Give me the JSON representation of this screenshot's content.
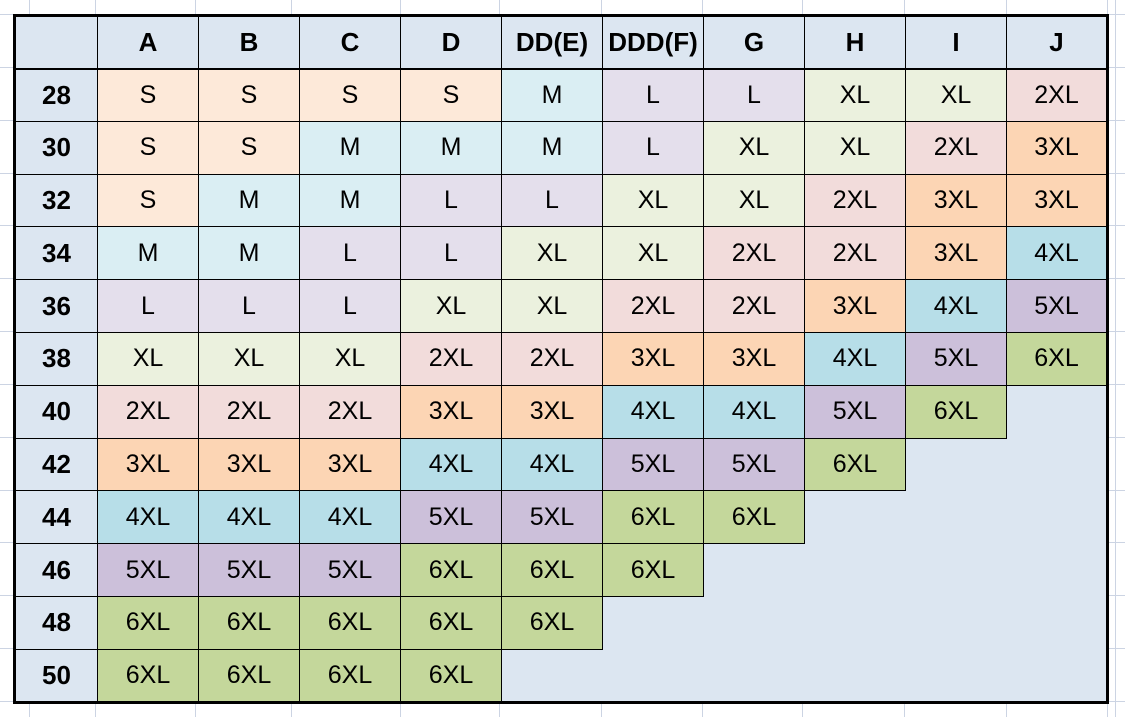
{
  "sheet": {
    "background": "#ffffff",
    "gridline_color": "#ccd4e3"
  },
  "table": {
    "corner_label": "",
    "header_bg": "#dce6f1",
    "band_bg": "#dce6f1",
    "empty_bg": "#dce6f1",
    "border_color": "#000000",
    "text_color": "#000000",
    "columns": [
      "A",
      "B",
      "C",
      "D",
      "DD(E)",
      "DDD(F)",
      "G",
      "H",
      "I",
      "J"
    ],
    "rows": [
      {
        "band": "28",
        "cells": [
          "S",
          "S",
          "S",
          "S",
          "M",
          "L",
          "L",
          "XL",
          "XL",
          "2XL"
        ]
      },
      {
        "band": "30",
        "cells": [
          "S",
          "S",
          "M",
          "M",
          "M",
          "L",
          "XL",
          "XL",
          "2XL",
          "3XL"
        ]
      },
      {
        "band": "32",
        "cells": [
          "S",
          "M",
          "M",
          "L",
          "L",
          "XL",
          "XL",
          "2XL",
          "3XL",
          "3XL"
        ]
      },
      {
        "band": "34",
        "cells": [
          "M",
          "M",
          "L",
          "L",
          "XL",
          "XL",
          "2XL",
          "2XL",
          "3XL",
          "4XL"
        ]
      },
      {
        "band": "36",
        "cells": [
          "L",
          "L",
          "L",
          "XL",
          "XL",
          "2XL",
          "2XL",
          "3XL",
          "4XL",
          "5XL"
        ]
      },
      {
        "band": "38",
        "cells": [
          "XL",
          "XL",
          "XL",
          "2XL",
          "2XL",
          "3XL",
          "3XL",
          "4XL",
          "5XL",
          "6XL"
        ]
      },
      {
        "band": "40",
        "cells": [
          "2XL",
          "2XL",
          "2XL",
          "3XL",
          "3XL",
          "4XL",
          "4XL",
          "5XL",
          "6XL",
          ""
        ]
      },
      {
        "band": "42",
        "cells": [
          "3XL",
          "3XL",
          "3XL",
          "4XL",
          "4XL",
          "5XL",
          "5XL",
          "6XL",
          "",
          ""
        ]
      },
      {
        "band": "44",
        "cells": [
          "4XL",
          "4XL",
          "4XL",
          "5XL",
          "5XL",
          "6XL",
          "6XL",
          "",
          "",
          ""
        ]
      },
      {
        "band": "46",
        "cells": [
          "5XL",
          "5XL",
          "5XL",
          "6XL",
          "6XL",
          "6XL",
          "",
          "",
          "",
          ""
        ]
      },
      {
        "band": "48",
        "cells": [
          "6XL",
          "6XL",
          "6XL",
          "6XL",
          "6XL",
          "",
          "",
          "",
          "",
          ""
        ]
      },
      {
        "band": "50",
        "cells": [
          "6XL",
          "6XL",
          "6XL",
          "6XL",
          "",
          "",
          "",
          "",
          "",
          ""
        ]
      }
    ],
    "size_colors": {
      "S": "#fde9d9",
      "M": "#daeef3",
      "L": "#e4dfec",
      "XL": "#ebf1de",
      "2XL": "#f2dcdb",
      "3XL": "#fcd5b4",
      "4XL": "#b7dee8",
      "5XL": "#ccc0da",
      "6XL": "#c4d79b"
    }
  }
}
